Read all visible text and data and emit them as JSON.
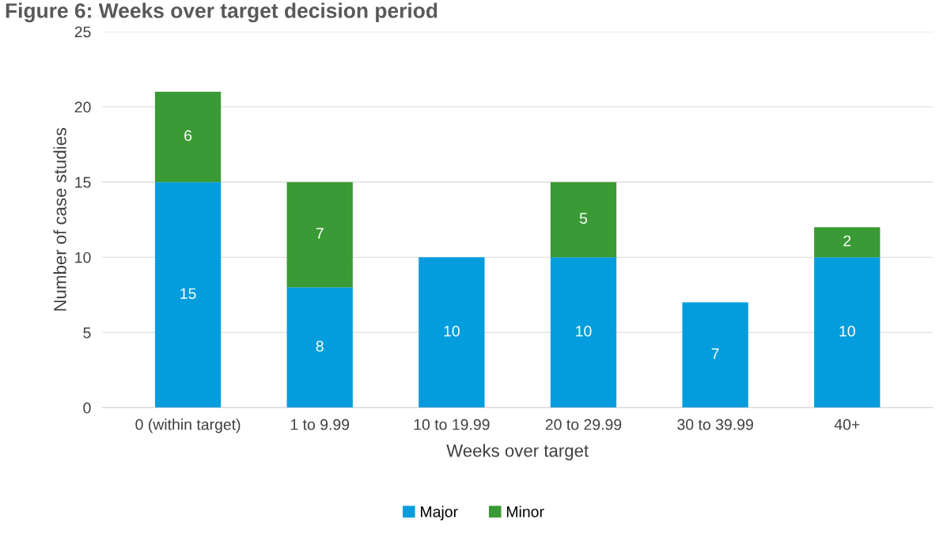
{
  "chart_data": {
    "type": "bar",
    "title": "Figure 6: Weeks over target decision period",
    "categories": [
      "0 (within target)",
      "1 to 9.99",
      "10 to 19.99",
      "20 to 29.99",
      "30 to 39.99",
      "40+"
    ],
    "series": [
      {
        "name": "Major",
        "color": "#039ddd",
        "values": [
          15,
          8,
          10,
          10,
          7,
          10
        ]
      },
      {
        "name": "Minor",
        "color": "#3a9a35",
        "values": [
          6,
          7,
          null,
          5,
          null,
          2
        ]
      }
    ],
    "stacked": true,
    "xlabel": "Weeks over target",
    "ylabel": "Number of case studies",
    "ylim": [
      0,
      25
    ],
    "yticks": [
      0,
      5,
      10,
      15,
      20,
      25
    ],
    "grid": "y",
    "legend": "bottom",
    "data_labels": true
  }
}
